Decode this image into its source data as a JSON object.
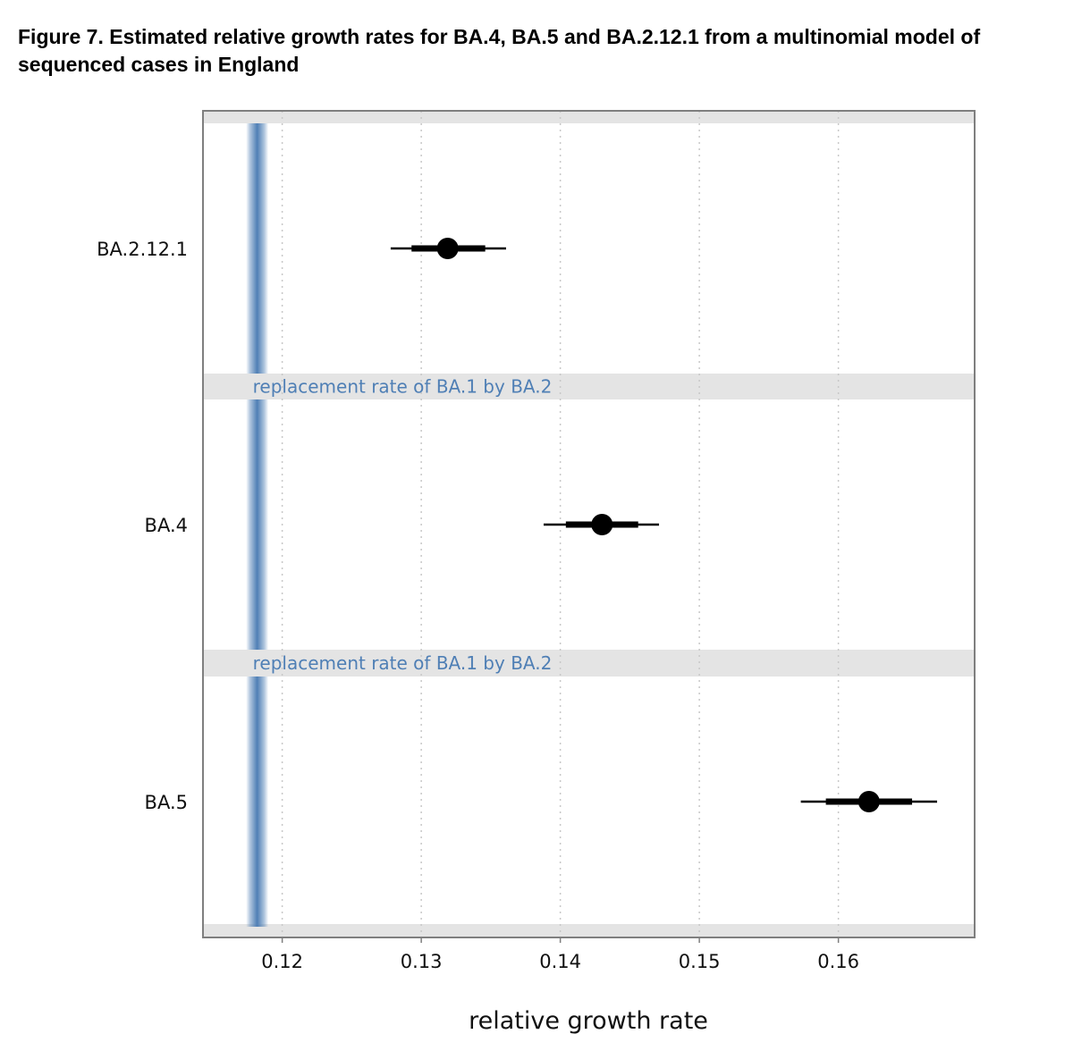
{
  "figure": {
    "title": "Figure 7. Estimated relative growth rates for BA.4, BA.5 and BA.2.12.1 from a multinomial model of sequenced cases in England"
  },
  "colors": {
    "reference_band": "#4f7fb5",
    "reference_text": "#4f7fb5",
    "strip": "#e4e4e4",
    "grid": "#c8c8c8",
    "frame": "#7f7f7f",
    "estimate": "#000000"
  },
  "chart_data": {
    "type": "forest",
    "title": "",
    "xlabel": "relative growth rate",
    "ylabel": "",
    "xlim": [
      0.1143,
      0.1698
    ],
    "x_ticks": [
      0.12,
      0.13,
      0.14,
      0.15,
      0.16
    ],
    "x_tick_labels": [
      "0.12",
      "0.13",
      "0.14",
      "0.15",
      "0.16"
    ],
    "grid": "vertical dotted",
    "categories": [
      "BA.2.12.1",
      "BA.4",
      "BA.5"
    ],
    "estimates": [
      {
        "name": "BA.2.12.1",
        "value": 0.1319,
        "inner": [
          0.1293,
          0.1346
        ],
        "outer": [
          0.1278,
          0.1361
        ]
      },
      {
        "name": "BA.4",
        "value": 0.143,
        "inner": [
          0.1404,
          0.1456
        ],
        "outer": [
          0.1388,
          0.1471
        ]
      },
      {
        "name": "BA.5",
        "value": 0.1622,
        "inner": [
          0.1591,
          0.1653
        ],
        "outer": [
          0.1573,
          0.1671
        ]
      }
    ],
    "reference": {
      "label": "replacement rate of BA.1 by BA.2",
      "center": 0.1182,
      "halfwidth": 0.0008
    }
  }
}
